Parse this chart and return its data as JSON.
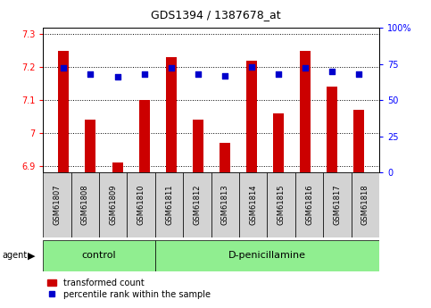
{
  "title": "GDS1394 / 1387678_at",
  "samples": [
    "GSM61807",
    "GSM61808",
    "GSM61809",
    "GSM61810",
    "GSM61811",
    "GSM61812",
    "GSM61813",
    "GSM61814",
    "GSM61815",
    "GSM61816",
    "GSM61817",
    "GSM61818"
  ],
  "transformed_count": [
    7.25,
    7.04,
    6.91,
    7.1,
    7.23,
    7.04,
    6.97,
    7.22,
    7.06,
    7.25,
    7.14,
    7.07
  ],
  "percentile_rank": [
    72,
    68,
    66,
    68,
    72,
    68,
    67,
    73,
    68,
    72,
    70,
    68
  ],
  "ylim_left": [
    6.88,
    7.32
  ],
  "ylim_right": [
    0,
    100
  ],
  "yticks_left": [
    6.9,
    7.0,
    7.1,
    7.2,
    7.3
  ],
  "yticks_right": [
    0,
    25,
    50,
    75,
    100
  ],
  "ytick_labels_left": [
    "6.9",
    "7",
    "7.1",
    "7.2",
    "7.3"
  ],
  "ytick_labels_right": [
    "0",
    "25",
    "50",
    "75",
    "100%"
  ],
  "groups": [
    {
      "label": "control",
      "start": 0,
      "end": 3
    },
    {
      "label": "D-penicillamine",
      "start": 4,
      "end": 11
    }
  ],
  "bar_color": "#cc0000",
  "dot_color": "#0000cc",
  "bar_width": 0.4,
  "dot_size": 25,
  "agent_label": "agent",
  "legend_bar_label": "transformed count",
  "legend_dot_label": "percentile rank within the sample",
  "sample_box_color": "#d3d3d3",
  "group_box_color": "#90EE90",
  "title_fontsize": 9,
  "tick_fontsize": 7,
  "sample_fontsize": 6,
  "group_fontsize": 8,
  "legend_fontsize": 7,
  "agent_fontsize": 7
}
